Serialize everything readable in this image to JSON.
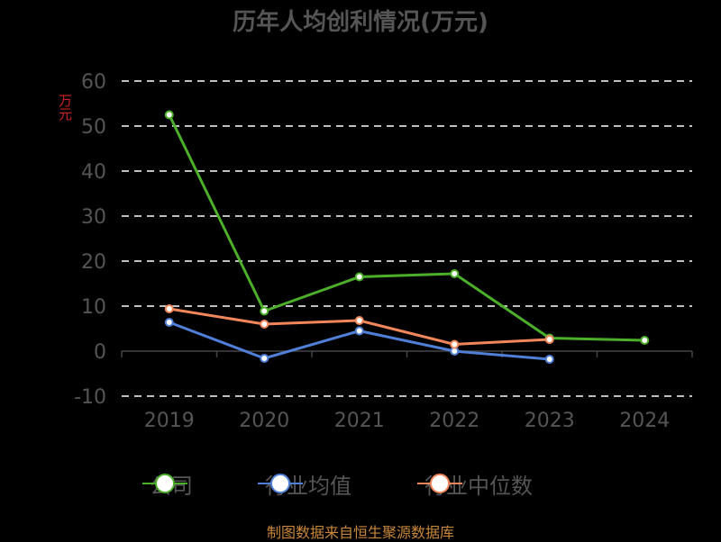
{
  "chart_data": {
    "type": "line",
    "title": "历年人均创利情况(万元)",
    "ylabel": "万元",
    "categories": [
      "2019",
      "2020",
      "2021",
      "2022",
      "2023",
      "2024"
    ],
    "ylim": [
      -10,
      60
    ],
    "yticks": [
      -10,
      0,
      10,
      20,
      30,
      40,
      50,
      60
    ],
    "grid": true,
    "legend_position": "bottom",
    "series": [
      {
        "name": "公司",
        "color": "#4caf2a",
        "values": [
          52.5,
          8.9,
          16.5,
          17.2,
          2.9,
          2.4
        ]
      },
      {
        "name": "行业均值",
        "color": "#4f7fd6",
        "values": [
          6.4,
          -1.6,
          4.5,
          0.0,
          -1.8,
          null
        ]
      },
      {
        "name": "行业中位数",
        "color": "#f0865a",
        "values": [
          9.4,
          6.0,
          6.8,
          1.5,
          2.6,
          null
        ]
      }
    ]
  },
  "source": "制图数据来自恒生聚源数据库"
}
